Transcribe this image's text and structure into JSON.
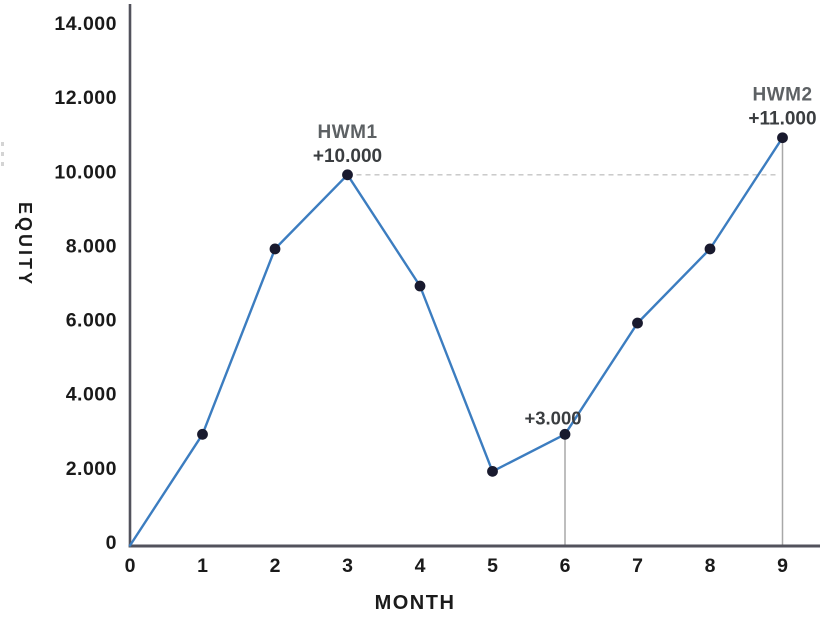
{
  "chart_data": {
    "type": "line",
    "title": "",
    "xlabel": "MONTH",
    "ylabel": "EQUITY",
    "x": [
      0,
      1,
      2,
      3,
      4,
      5,
      6,
      7,
      8,
      9
    ],
    "values": [
      0,
      3000,
      8000,
      10000,
      7000,
      2000,
      3000,
      6000,
      8000,
      11000
    ],
    "x_tick_labels": [
      "0",
      "1",
      "2",
      "3",
      "4",
      "5",
      "6",
      "7",
      "8",
      "9"
    ],
    "y_ticks": [
      0,
      2000,
      4000,
      6000,
      8000,
      10000,
      12000,
      14000
    ],
    "y_tick_labels": [
      "0",
      "2.000",
      "4.000",
      "6.000",
      "8.000",
      "10.000",
      "12.000",
      "14.000"
    ],
    "ylim": [
      0,
      14000
    ],
    "xlim": [
      0,
      9
    ],
    "grid": false,
    "legend": null,
    "annotations": [
      {
        "id": "hwm1",
        "title": "HWM1",
        "value": "+10.000",
        "month": 3
      },
      {
        "id": "hwm2",
        "title": "HWM2",
        "value": "+11.000",
        "month": 9
      },
      {
        "id": "recovery-low",
        "title": "",
        "value": "+3.000",
        "month": 6
      }
    ],
    "high_water_dashed_line": {
      "from_month": 3,
      "to_month": 9,
      "at_value": 10000
    },
    "droplines": [
      {
        "month": 6
      },
      {
        "month": 9
      }
    ],
    "colors": {
      "line": "#3c7dc0",
      "point": "#191a2e",
      "axis": "#52525c",
      "tick_label": "#1a1a1a",
      "dashed_line": "#c4c4c4",
      "dropline": "#a8a8a8",
      "annotation_title": "#5d6164",
      "annotation_value": "#3a3d40",
      "background": "#ffffff"
    }
  }
}
